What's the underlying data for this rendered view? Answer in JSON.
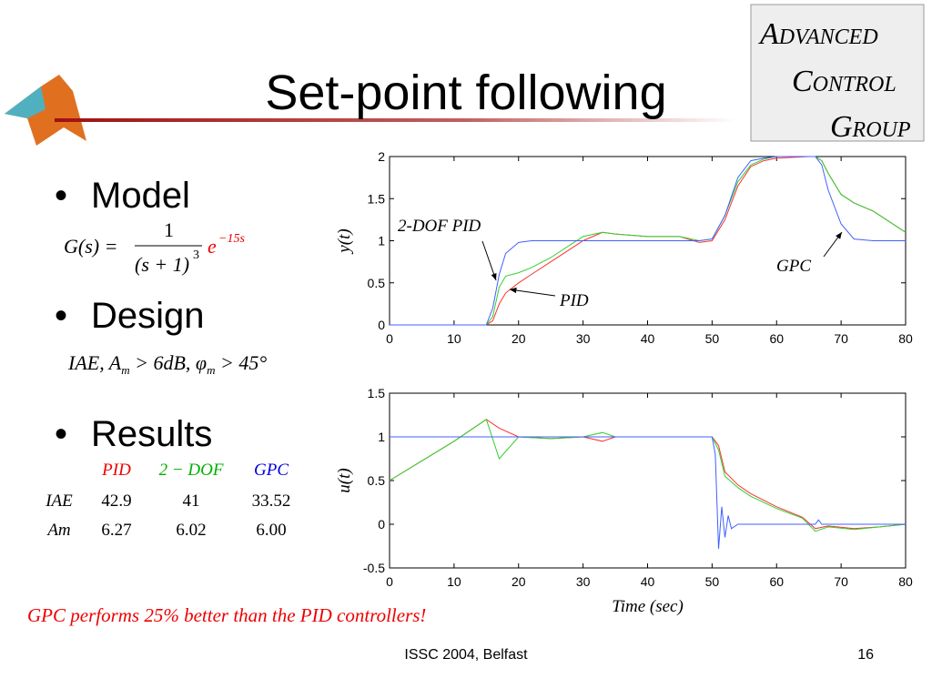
{
  "title": "Set-point following",
  "logo": [
    "Advanced",
    "Control",
    "Group"
  ],
  "bullets": [
    "Model",
    "Design",
    "Results"
  ],
  "model_formula": {
    "lhs": "G(s) =",
    "numerator": "1",
    "denominator": "(s + 1)",
    "power": "3",
    "exp_base": "e",
    "exponent": "−15s"
  },
  "design_formula": [
    "IAE, A",
    "m",
    " > 6dB, φ",
    "m",
    " > 45°"
  ],
  "results_table": {
    "header": [
      "PID",
      "2 − DOF",
      "GPC"
    ],
    "rows": [
      [
        "IAE",
        "42.9",
        "41",
        "33.52"
      ],
      [
        "Am",
        "6.27",
        "6.02",
        "6.00"
      ]
    ]
  },
  "conclusion": "GPC performs 25% better than the PID controllers!",
  "footer": {
    "event": "ISSC 2004, Belfast",
    "page": "16"
  },
  "chart_data": [
    {
      "type": "line",
      "ylabel": "y(t)",
      "xlim": [
        0,
        80
      ],
      "xticks": [
        0,
        10,
        20,
        30,
        40,
        50,
        60,
        70,
        80
      ],
      "ylim": [
        0,
        2
      ],
      "yticks": [
        0,
        0.5,
        1,
        1.5,
        2
      ],
      "series": [
        {
          "name": "PID",
          "color": "#ff3030",
          "x": [
            0,
            15,
            16,
            17,
            18,
            20,
            22,
            25,
            30,
            33,
            35,
            40,
            45,
            48,
            50,
            52,
            54,
            56,
            58,
            60,
            65,
            66,
            67,
            68,
            70,
            72,
            75,
            80
          ],
          "values": [
            0,
            0,
            0.05,
            0.25,
            0.38,
            0.5,
            0.6,
            0.75,
            1.0,
            1.1,
            1.08,
            1.05,
            1.05,
            0.98,
            1.0,
            1.25,
            1.65,
            1.88,
            1.95,
            1.98,
            2.0,
            2.0,
            1.95,
            1.8,
            1.55,
            1.45,
            1.35,
            1.1
          ]
        },
        {
          "name": "2-DOF PID",
          "color": "#30d030",
          "x": [
            0,
            15,
            16,
            17,
            18,
            20,
            22,
            25,
            30,
            33,
            35,
            40,
            45,
            48,
            50,
            52,
            54,
            56,
            58,
            60,
            65,
            66,
            67,
            68,
            70,
            72,
            75,
            80
          ],
          "values": [
            0,
            0,
            0.1,
            0.45,
            0.58,
            0.62,
            0.68,
            0.8,
            1.05,
            1.1,
            1.08,
            1.05,
            1.05,
            1.0,
            1.02,
            1.3,
            1.7,
            1.9,
            1.97,
            2.0,
            2.0,
            2.0,
            1.95,
            1.8,
            1.55,
            1.45,
            1.35,
            1.1
          ]
        },
        {
          "name": "GPC",
          "color": "#4060ff",
          "x": [
            0,
            15,
            16,
            17,
            18,
            20,
            22,
            25,
            30,
            33,
            35,
            40,
            45,
            48,
            50,
            52,
            54,
            56,
            58,
            60,
            65,
            66,
            67,
            68,
            70,
            72,
            75,
            80
          ],
          "values": [
            0,
            0,
            0.2,
            0.6,
            0.85,
            0.98,
            1.0,
            1.0,
            1.0,
            1.0,
            1.0,
            1.0,
            1.0,
            1.0,
            1.02,
            1.3,
            1.75,
            1.95,
            1.98,
            2.0,
            2.0,
            2.0,
            1.9,
            1.6,
            1.2,
            1.02,
            1.0,
            1.0
          ]
        }
      ]
    },
    {
      "type": "line",
      "ylabel": "u(t)",
      "xlabel": "Time (sec)",
      "xlim": [
        0,
        80
      ],
      "xticks": [
        0,
        10,
        20,
        30,
        40,
        50,
        60,
        70,
        80
      ],
      "ylim": [
        -0.5,
        1.5
      ],
      "yticks": [
        -0.5,
        0,
        0.5,
        1,
        1.5
      ],
      "series": [
        {
          "color": "#ff3030",
          "x": [
            0,
            10,
            15,
            17,
            20,
            25,
            30,
            33,
            35,
            40,
            45,
            50,
            51,
            52,
            54,
            56,
            60,
            64,
            66,
            68,
            72,
            76,
            80
          ],
          "values": [
            0.5,
            0.95,
            1.2,
            1.1,
            1.0,
            0.98,
            1.0,
            0.95,
            1.0,
            1.0,
            1.0,
            1.0,
            0.9,
            0.6,
            0.45,
            0.35,
            0.2,
            0.08,
            -0.05,
            -0.02,
            -0.05,
            -0.03,
            0
          ]
        },
        {
          "color": "#30d030",
          "x": [
            0,
            10,
            15,
            17,
            20,
            25,
            30,
            33,
            35,
            40,
            45,
            50,
            51,
            52,
            54,
            56,
            60,
            64,
            66,
            68,
            72,
            76,
            80
          ],
          "values": [
            0.5,
            0.95,
            1.2,
            0.75,
            1.0,
            0.98,
            1.0,
            1.05,
            1.0,
            1.0,
            1.0,
            1.0,
            0.85,
            0.55,
            0.42,
            0.32,
            0.18,
            0.07,
            -0.08,
            -0.03,
            -0.06,
            -0.03,
            0
          ]
        },
        {
          "color": "#4060ff",
          "x": [
            0,
            0.3,
            10,
            15,
            20,
            30,
            40,
            50,
            50.5,
            51,
            51.5,
            52,
            52.5,
            53,
            54,
            60,
            66,
            66.5,
            67,
            70,
            80
          ],
          "values": [
            1,
            1,
            1,
            1,
            1,
            1,
            1,
            1,
            0.8,
            -0.28,
            0.2,
            -0.15,
            0.1,
            -0.05,
            0,
            0,
            0,
            0.05,
            0,
            0,
            0
          ]
        }
      ]
    }
  ]
}
